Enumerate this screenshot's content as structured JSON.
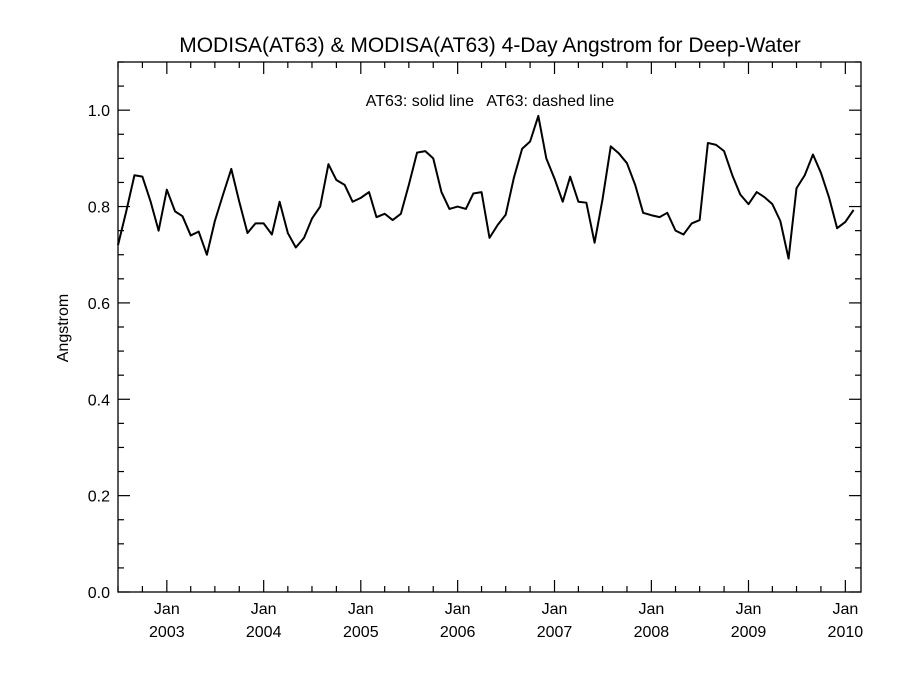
{
  "chart_data": {
    "type": "line",
    "title": "MODISA(AT63) & MODISA(AT63) 4-Day Angstrom for Deep-Water",
    "xlabel": "",
    "ylabel": "Angstrom",
    "annotation": "AT63: solid line   AT63: dashed line",
    "ylim": [
      0.0,
      1.1
    ],
    "xlim": [
      "2002-07-01",
      "2010-03-01"
    ],
    "y_ticks": [
      "0.0",
      "0.2",
      "0.4",
      "0.6",
      "0.8",
      "1.0"
    ],
    "x_tick_labels": [
      {
        "date": "2003-01-01",
        "month": "Jan",
        "year": "2003"
      },
      {
        "date": "2004-01-01",
        "month": "Jan",
        "year": "2004"
      },
      {
        "date": "2005-01-01",
        "month": "Jan",
        "year": "2005"
      },
      {
        "date": "2006-01-01",
        "month": "Jan",
        "year": "2006"
      },
      {
        "date": "2007-01-01",
        "month": "Jan",
        "year": "2007"
      },
      {
        "date": "2008-01-01",
        "month": "Jan",
        "year": "2008"
      },
      {
        "date": "2009-01-01",
        "month": "Jan",
        "year": "2009"
      },
      {
        "date": "2010-01-01",
        "month": "Jan",
        "year": "2010"
      }
    ],
    "grid": false,
    "series": [
      {
        "style": "solid",
        "color": "#000000",
        "points": [
          [
            "2002-07-01",
            0.72
          ],
          [
            "2002-08-01",
            0.79
          ],
          [
            "2002-09-01",
            0.865
          ],
          [
            "2002-10-01",
            0.862
          ],
          [
            "2002-11-01",
            0.81
          ],
          [
            "2002-12-01",
            0.75
          ],
          [
            "2003-01-01",
            0.835
          ],
          [
            "2003-02-01",
            0.79
          ],
          [
            "2003-03-01",
            0.78
          ],
          [
            "2003-04-01",
            0.74
          ],
          [
            "2003-05-01",
            0.748
          ],
          [
            "2003-06-01",
            0.7
          ],
          [
            "2003-07-01",
            0.77
          ],
          [
            "2003-08-01",
            0.825
          ],
          [
            "2003-09-01",
            0.878
          ],
          [
            "2003-10-01",
            0.81
          ],
          [
            "2003-11-01",
            0.745
          ],
          [
            "2003-12-01",
            0.765
          ],
          [
            "2004-01-01",
            0.765
          ],
          [
            "2004-02-01",
            0.742
          ],
          [
            "2004-03-01",
            0.81
          ],
          [
            "2004-04-01",
            0.745
          ],
          [
            "2004-05-01",
            0.715
          ],
          [
            "2004-06-01",
            0.735
          ],
          [
            "2004-07-01",
            0.775
          ],
          [
            "2004-08-01",
            0.8
          ],
          [
            "2004-09-01",
            0.888
          ],
          [
            "2004-10-01",
            0.855
          ],
          [
            "2004-11-01",
            0.845
          ],
          [
            "2004-12-01",
            0.81
          ],
          [
            "2005-01-01",
            0.818
          ],
          [
            "2005-02-01",
            0.83
          ],
          [
            "2005-03-01",
            0.778
          ],
          [
            "2005-04-01",
            0.785
          ],
          [
            "2005-05-01",
            0.772
          ],
          [
            "2005-06-01",
            0.785
          ],
          [
            "2005-07-01",
            0.845
          ],
          [
            "2005-08-01",
            0.912
          ],
          [
            "2005-09-01",
            0.915
          ],
          [
            "2005-10-01",
            0.9
          ],
          [
            "2005-11-01",
            0.83
          ],
          [
            "2005-12-01",
            0.795
          ],
          [
            "2006-01-01",
            0.8
          ],
          [
            "2006-02-01",
            0.795
          ],
          [
            "2006-03-01",
            0.827
          ],
          [
            "2006-04-01",
            0.83
          ],
          [
            "2006-05-01",
            0.735
          ],
          [
            "2006-06-01",
            0.762
          ],
          [
            "2006-07-01",
            0.783
          ],
          [
            "2006-08-01",
            0.86
          ],
          [
            "2006-09-01",
            0.92
          ],
          [
            "2006-10-01",
            0.935
          ],
          [
            "2006-11-01",
            0.988
          ],
          [
            "2006-12-01",
            0.9
          ],
          [
            "2007-01-01",
            0.858
          ],
          [
            "2007-02-01",
            0.81
          ],
          [
            "2007-03-01",
            0.862
          ],
          [
            "2007-04-01",
            0.81
          ],
          [
            "2007-05-01",
            0.808
          ],
          [
            "2007-06-01",
            0.725
          ],
          [
            "2007-07-01",
            0.815
          ],
          [
            "2007-08-01",
            0.925
          ],
          [
            "2007-09-01",
            0.91
          ],
          [
            "2007-10-01",
            0.89
          ],
          [
            "2007-11-01",
            0.845
          ],
          [
            "2007-12-01",
            0.787
          ],
          [
            "2008-01-01",
            0.782
          ],
          [
            "2008-02-01",
            0.778
          ],
          [
            "2008-03-01",
            0.787
          ],
          [
            "2008-04-01",
            0.75
          ],
          [
            "2008-05-01",
            0.742
          ],
          [
            "2008-06-01",
            0.765
          ],
          [
            "2008-07-01",
            0.772
          ],
          [
            "2008-08-01",
            0.932
          ],
          [
            "2008-09-01",
            0.928
          ],
          [
            "2008-10-01",
            0.915
          ],
          [
            "2008-11-01",
            0.865
          ],
          [
            "2008-12-01",
            0.825
          ],
          [
            "2009-01-01",
            0.805
          ],
          [
            "2009-02-01",
            0.83
          ],
          [
            "2009-03-01",
            0.82
          ],
          [
            "2009-04-01",
            0.805
          ],
          [
            "2009-05-01",
            0.77
          ],
          [
            "2009-06-01",
            0.692
          ],
          [
            "2009-07-01",
            0.838
          ],
          [
            "2009-08-01",
            0.865
          ],
          [
            "2009-09-01",
            0.908
          ],
          [
            "2009-10-01",
            0.87
          ],
          [
            "2009-11-01",
            0.818
          ],
          [
            "2009-12-01",
            0.755
          ],
          [
            "2010-01-01",
            0.768
          ],
          [
            "2010-02-01",
            0.793
          ]
        ]
      }
    ]
  }
}
